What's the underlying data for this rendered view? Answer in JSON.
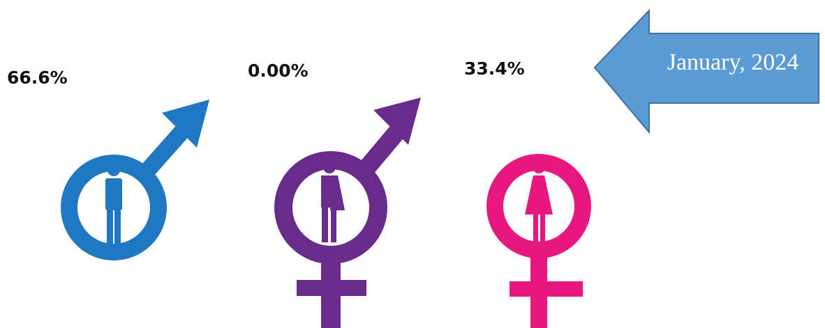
{
  "labels": {
    "male": "66.6%",
    "intersex": "0.00%",
    "female": "33.4%"
  },
  "callout": "January, 2024"
}
